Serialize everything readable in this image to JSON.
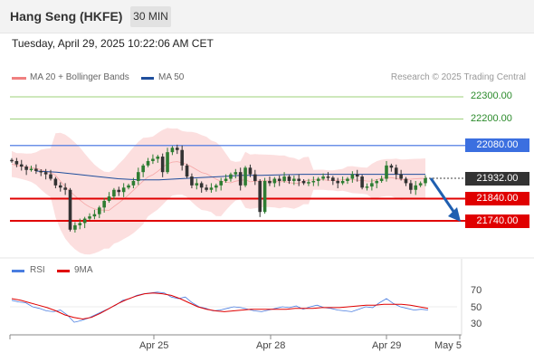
{
  "header": {
    "title": "Hang Seng (HKFE)",
    "timeframe": "30 MIN",
    "datetime": "Tuesday, April 29, 2025 10:22:06 AM CET"
  },
  "legend": {
    "bb_label": "MA 20 + Bollinger Bands",
    "ma50_label": "MA 50",
    "credit": "Research © 2025 Trading Central",
    "rsi_label": "RSI",
    "ma9_label": "9MA"
  },
  "colors": {
    "bb": "#f08080",
    "ma50": "#1f4e9c",
    "rsi": "#4a7de0",
    "ma9": "#e00000",
    "up": "#2e7d32",
    "down": "#333333",
    "resistance": "#3b6fe0",
    "support": "#e00000",
    "target": "#1f5fb0"
  },
  "price_levels": {
    "green": [
      "22300.00",
      "22200.00"
    ],
    "resistance": "22080.00",
    "last": "21932.00",
    "support1": "21840.00",
    "support2": "21740.00"
  },
  "rsi_levels": [
    "70",
    "50",
    "30"
  ],
  "x_labels": [
    "Apr 25",
    "Apr 28",
    "Apr 29",
    "May 5"
  ],
  "chart_data": {
    "type": "candlestick",
    "title": "Hang Seng (HKFE)",
    "interval": "30 MIN",
    "ylim": [
      21650,
      22340
    ],
    "horizontal_levels": {
      "22300": "green",
      "22200": "green",
      "22080": "resistance",
      "21932": "last price",
      "21840": "support",
      "21740": "support"
    },
    "forecast_arrow": {
      "from": 21932,
      "to": 21740
    },
    "closes": [
      22010,
      21995,
      21985,
      21970,
      21975,
      21965,
      21960,
      21950,
      21930,
      21900,
      21890,
      21880,
      21700,
      21720,
      21730,
      21750,
      21760,
      21770,
      21800,
      21830,
      21850,
      21880,
      21870,
      21890,
      21900,
      21920,
      21960,
      21990,
      22010,
      22020,
      22030,
      21960,
      22050,
      22070,
      22060,
      21990,
      21940,
      21900,
      21910,
      21890,
      21880,
      21890,
      21900,
      21920,
      21930,
      21950,
      21960,
      21900,
      21980,
      21950,
      21920,
      21780,
      21920,
      21910,
      21930,
      21920,
      21940,
      21920,
      21930,
      21920,
      21910,
      21915,
      21920,
      21930,
      21940,
      21935,
      21920,
      21910,
      21920,
      21930,
      21950,
      21940,
      21890,
      21895,
      21910,
      21920,
      21930,
      21990,
      21980,
      21950,
      21930,
      21910,
      21880,
      21900,
      21910,
      21932
    ],
    "ma50": [
      21965,
      21960,
      21950,
      21940,
      21930,
      21925,
      21925,
      21930,
      21935,
      21940,
      21945,
      21945,
      21948,
      21950,
      21950,
      21950,
      21950,
      21950,
      21950,
      21950
    ],
    "rsi": [
      58,
      56,
      55,
      50,
      48,
      45,
      44,
      46,
      40,
      31,
      33,
      36,
      40,
      44,
      48,
      52,
      58,
      60,
      64,
      66,
      67,
      68,
      67,
      62,
      60,
      62,
      55,
      50,
      48,
      45,
      46,
      48,
      50,
      49,
      47,
      45,
      44,
      46,
      48,
      50,
      49,
      51,
      47,
      50,
      52,
      49,
      48,
      46,
      45,
      44,
      47,
      50,
      49,
      55,
      60,
      54,
      50,
      48,
      46,
      47,
      46
    ],
    "ma9": [
      60,
      58,
      55,
      52,
      49,
      45,
      40,
      37,
      35,
      37,
      42,
      48,
      54,
      59,
      63,
      66,
      67,
      66,
      64,
      60,
      55,
      50,
      47,
      45,
      44,
      45,
      46,
      47,
      47,
      47,
      47,
      47,
      48,
      48,
      48,
      49,
      49,
      49,
      50,
      51,
      52,
      52,
      53,
      53,
      53,
      52,
      50,
      48
    ]
  }
}
